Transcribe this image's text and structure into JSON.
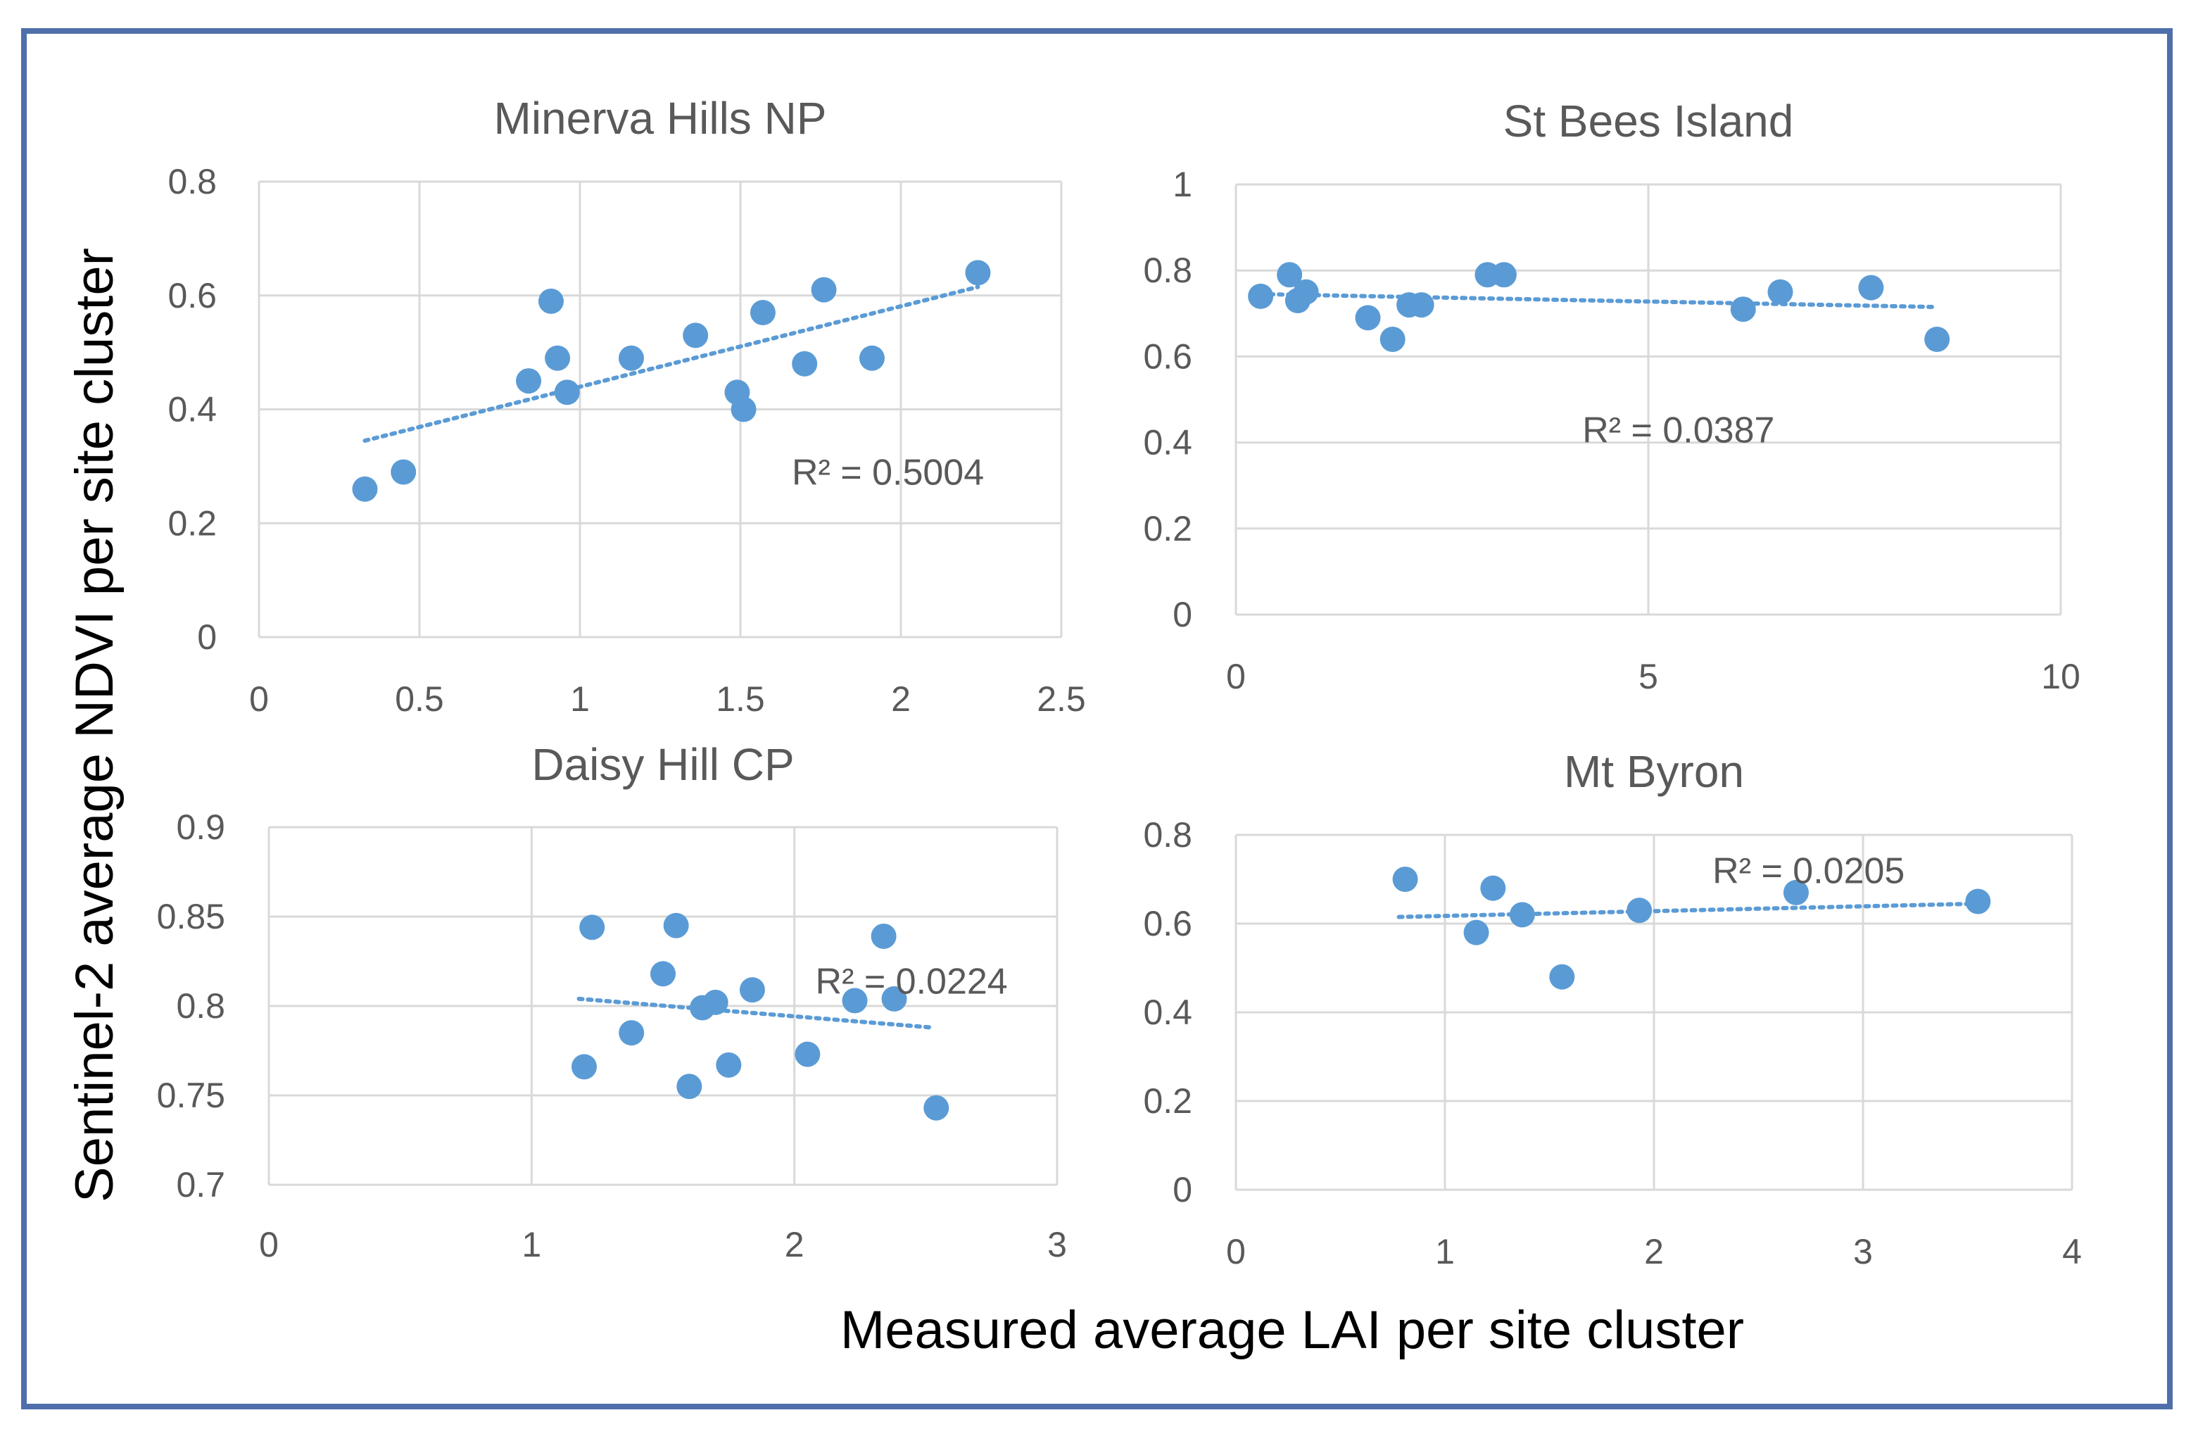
{
  "figure": {
    "ylabel": "Sentinel-2 average NDVI per site cluster",
    "xlabel": "Measured average LAI per site cluster"
  },
  "colors": {
    "point": "#5b9bd5",
    "trend": "#5b9bd5",
    "grid": "#d9d9d9",
    "border": "#4f6fab"
  },
  "chart_data": [
    {
      "type": "scatter",
      "title": "Minerva Hills NP",
      "xlim": [
        0,
        2.5
      ],
      "ylim": [
        0,
        0.8
      ],
      "xticks": [
        0,
        0.5,
        1,
        1.5,
        2,
        2.5
      ],
      "yticks": [
        0,
        0.2,
        0.4,
        0.6,
        0.8
      ],
      "xtick_labels": [
        "0",
        "0.5",
        "1",
        "1.5",
        "2",
        "2.5"
      ],
      "ytick_labels": [
        "0",
        "0.2",
        "0.4",
        "0.6",
        "0.8"
      ],
      "x": [
        0.33,
        0.45,
        0.84,
        0.91,
        0.93,
        0.96,
        1.16,
        1.36,
        1.49,
        1.51,
        1.57,
        1.7,
        1.76,
        1.91,
        2.24
      ],
      "y": [
        0.26,
        0.29,
        0.45,
        0.59,
        0.49,
        0.43,
        0.49,
        0.53,
        0.43,
        0.4,
        0.57,
        0.48,
        0.61,
        0.49,
        0.64
      ],
      "trendline": {
        "x": [
          0.33,
          2.24
        ],
        "y": [
          0.345,
          0.615
        ]
      },
      "r2_label": "R² = 0.5004",
      "r2_anchor": [
        1.66,
        0.29
      ]
    },
    {
      "type": "scatter",
      "title": "St Bees Island",
      "xlim": [
        0,
        10
      ],
      "ylim": [
        0,
        1
      ],
      "xticks": [
        0,
        5,
        10
      ],
      "yticks": [
        0,
        0.2,
        0.4,
        0.6,
        0.8,
        1
      ],
      "xtick_labels": [
        "0",
        "5",
        "10"
      ],
      "ytick_labels": [
        "0",
        "0.2",
        "0.4",
        "0.6",
        "0.8",
        "1"
      ],
      "x": [
        0.3,
        0.65,
        0.75,
        0.85,
        1.6,
        1.9,
        2.1,
        2.25,
        3.05,
        3.25,
        6.15,
        6.6,
        7.7,
        8.5
      ],
      "y": [
        0.74,
        0.79,
        0.73,
        0.75,
        0.69,
        0.64,
        0.72,
        0.72,
        0.79,
        0.79,
        0.71,
        0.75,
        0.76,
        0.64
      ],
      "trendline": {
        "x": [
          0.3,
          8.5
        ],
        "y": [
          0.745,
          0.715
        ]
      },
      "r2_label": "R² = 0.0387",
      "r2_anchor": [
        4.2,
        0.43
      ]
    },
    {
      "type": "scatter",
      "title": "Daisy Hill CP",
      "xlim": [
        0,
        3
      ],
      "ylim": [
        0.7,
        0.9
      ],
      "xticks": [
        0,
        1,
        2,
        3
      ],
      "yticks": [
        0.7,
        0.75,
        0.8,
        0.85,
        0.9
      ],
      "xtick_labels": [
        "0",
        "1",
        "2",
        "3"
      ],
      "ytick_labels": [
        "0.7",
        "0.75",
        "0.8",
        "0.85",
        "0.9"
      ],
      "x": [
        1.2,
        1.23,
        1.38,
        1.5,
        1.55,
        1.6,
        1.65,
        1.7,
        1.75,
        1.84,
        2.05,
        2.23,
        2.34,
        2.38,
        2.54
      ],
      "y": [
        0.766,
        0.844,
        0.785,
        0.818,
        0.845,
        0.755,
        0.799,
        0.802,
        0.767,
        0.809,
        0.773,
        0.803,
        0.839,
        0.804,
        0.743
      ],
      "trendline": {
        "x": [
          1.18,
          2.52
        ],
        "y": [
          0.804,
          0.788
        ]
      },
      "r2_label": "R² = 0.0224",
      "r2_anchor": [
        2.08,
        0.814
      ]
    },
    {
      "type": "scatter",
      "title": "Mt Byron",
      "xlim": [
        0,
        4
      ],
      "ylim": [
        0,
        0.8
      ],
      "xticks": [
        0,
        1,
        2,
        3,
        4
      ],
      "yticks": [
        0,
        0.2,
        0.4,
        0.6,
        0.8
      ],
      "xtick_labels": [
        "0",
        "1",
        "2",
        "3",
        "4"
      ],
      "ytick_labels": [
        "0",
        "0.2",
        "0.4",
        "0.6",
        "0.8"
      ],
      "x": [
        0.81,
        1.15,
        1.23,
        1.37,
        1.56,
        1.93,
        2.68,
        3.55
      ],
      "y": [
        0.7,
        0.58,
        0.68,
        0.62,
        0.48,
        0.63,
        0.67,
        0.65
      ],
      "trendline": {
        "x": [
          0.78,
          3.55
        ],
        "y": [
          0.615,
          0.645
        ]
      },
      "r2_label": "R² = 0.0205",
      "r2_anchor": [
        2.28,
        0.72
      ]
    }
  ]
}
